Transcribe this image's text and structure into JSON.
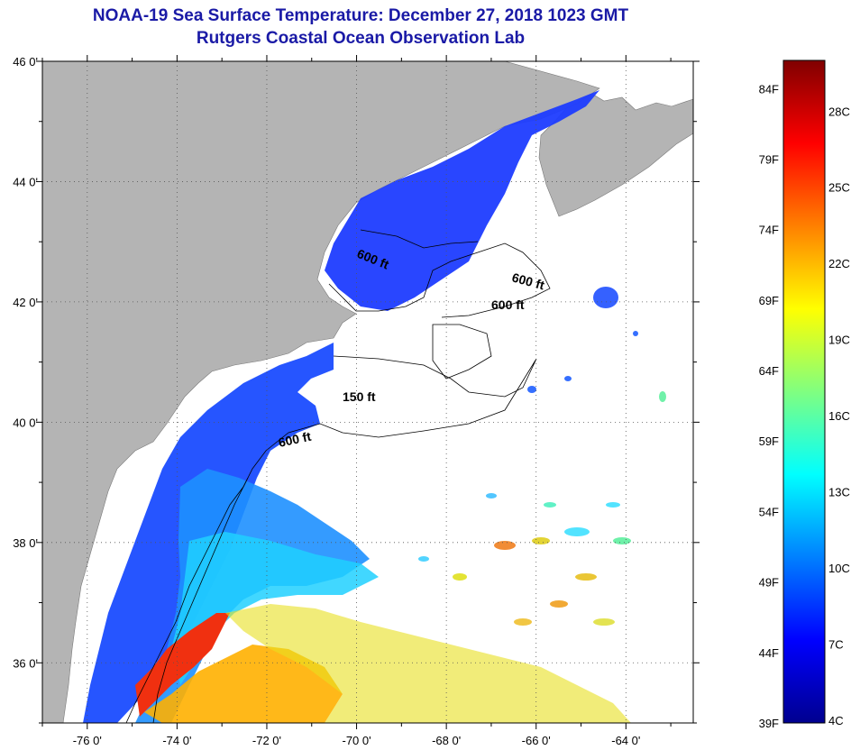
{
  "title": "NOAA-19 Sea Surface Temperature:  December 27, 2018 1023 GMT",
  "subtitle": "Rutgers Coastal Ocean Observation Lab",
  "map": {
    "lon_range": [
      -77,
      -62.5
    ],
    "lat_range": [
      35,
      46
    ],
    "lon_ticks": [
      "-76 0'",
      "-74 0'",
      "-72 0'",
      "-70 0'",
      "-68 0'",
      "-66 0'",
      "-64 0'"
    ],
    "lat_ticks": [
      "46 0'",
      "44 0'",
      "42 0'",
      "40 0'",
      "38 0'",
      "36 0'"
    ],
    "land_color": "#b4b4b4",
    "no_data_color": "#ffffff",
    "contour_labels": [
      "600 ft",
      "600 ft",
      "600 ft",
      "150 ft",
      "600 ft"
    ]
  },
  "colorbar": {
    "f_labels": [
      "84F",
      "79F",
      "74F",
      "69F",
      "64F",
      "59F",
      "54F",
      "49F",
      "44F",
      "39F"
    ],
    "c_labels": [
      "28C",
      "25C",
      "22C",
      "19C",
      "16C",
      "13C",
      "10C",
      "7C",
      "4C"
    ],
    "colors": [
      "#00008f",
      "#0000ff",
      "#0080ff",
      "#00ffff",
      "#80ff80",
      "#ffff00",
      "#ff8000",
      "#ff0000",
      "#800000"
    ]
  }
}
